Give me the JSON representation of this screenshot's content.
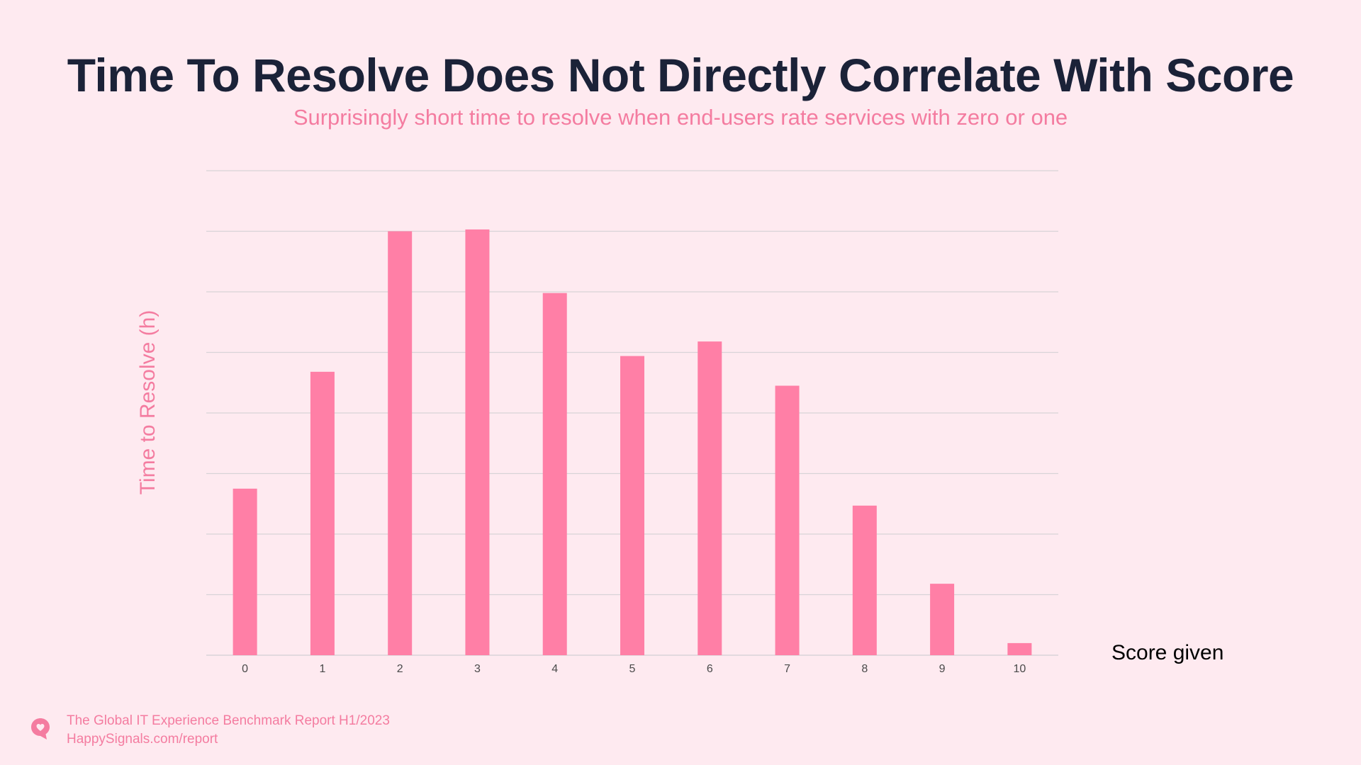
{
  "header": {
    "title": "Time To Resolve Does Not Directly Correlate With Score",
    "subtitle": "Surprisingly short time to resolve when end-users rate services with zero or one"
  },
  "chart_data": {
    "type": "bar",
    "title": "Time To Resolve Does Not Directly Correlate With Score",
    "subtitle": "Surprisingly short time to resolve when end-users rate services with zero or one",
    "xlabel": "Score given",
    "ylabel": "Time to Resolve (h)",
    "categories": [
      "0",
      "1",
      "2",
      "3",
      "4",
      "5",
      "6",
      "7",
      "8",
      "9",
      "10"
    ],
    "values": [
      2.75,
      4.68,
      7.0,
      7.03,
      5.98,
      4.94,
      5.18,
      4.45,
      2.47,
      1.18,
      0.2
    ],
    "ylim": [
      0,
      8
    ],
    "y_gridlines": 8,
    "y_tick_labels_shown": false,
    "grid": true,
    "bar_color": "#FF7FA6",
    "gridline_color": "#D8D3D7"
  },
  "footer": {
    "icon": "heart-speech-bubble-icon",
    "line1": "The Global IT Experience Benchmark Report H1/2023",
    "line2": "HappySignals.com/report"
  },
  "colors": {
    "background": "#FEEAF0",
    "title": "#1B2238",
    "accent": "#F47CA0"
  }
}
